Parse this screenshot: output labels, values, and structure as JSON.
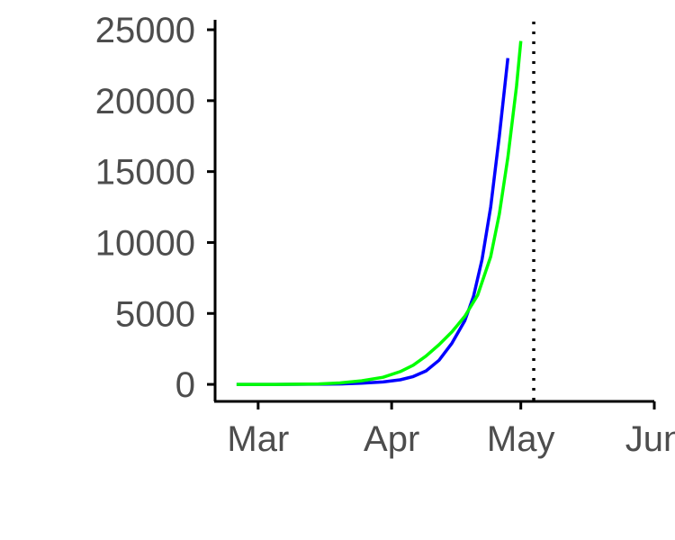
{
  "chart_data": {
    "type": "line",
    "title": "",
    "xlabel": "",
    "ylabel": "",
    "x_axis": {
      "type": "date",
      "range": [
        "2020-02-20",
        "2020-06-01"
      ],
      "ticks": [
        {
          "date": "2020-03-01",
          "label": "Mar"
        },
        {
          "date": "2020-04-01",
          "label": "Apr"
        },
        {
          "date": "2020-05-01",
          "label": "May"
        },
        {
          "date": "2020-06-01",
          "label": "Jun"
        }
      ]
    },
    "y_axis": {
      "range": [
        -1200,
        25700
      ],
      "ticks": [
        0,
        5000,
        10000,
        15000,
        20000,
        25000
      ]
    },
    "grid": false,
    "legend": "none",
    "reference_lines": [
      {
        "orientation": "vertical",
        "date": "2020-05-04",
        "style": "dotted",
        "color": "#000000"
      }
    ],
    "series": [
      {
        "color": "#0000ff",
        "points": [
          [
            "2020-02-25",
            0
          ],
          [
            "2020-03-05",
            0
          ],
          [
            "2020-03-15",
            10
          ],
          [
            "2020-03-20",
            30
          ],
          [
            "2020-03-25",
            80
          ],
          [
            "2020-03-30",
            170
          ],
          [
            "2020-04-03",
            320
          ],
          [
            "2020-04-06",
            550
          ],
          [
            "2020-04-09",
            950
          ],
          [
            "2020-04-12",
            1700
          ],
          [
            "2020-04-15",
            2900
          ],
          [
            "2020-04-18",
            4500
          ],
          [
            "2020-04-20",
            6200
          ],
          [
            "2020-04-22",
            8800
          ],
          [
            "2020-04-24",
            12500
          ],
          [
            "2020-04-26",
            17500
          ],
          [
            "2020-04-28",
            23000
          ]
        ]
      },
      {
        "color": "#00ff00",
        "points": [
          [
            "2020-02-25",
            0
          ],
          [
            "2020-03-05",
            0
          ],
          [
            "2020-03-15",
            30
          ],
          [
            "2020-03-20",
            100
          ],
          [
            "2020-03-25",
            250
          ],
          [
            "2020-03-30",
            500
          ],
          [
            "2020-04-03",
            900
          ],
          [
            "2020-04-06",
            1350
          ],
          [
            "2020-04-09",
            2000
          ],
          [
            "2020-04-12",
            2800
          ],
          [
            "2020-04-15",
            3700
          ],
          [
            "2020-04-18",
            4800
          ],
          [
            "2020-04-21",
            6300
          ],
          [
            "2020-04-24",
            9000
          ],
          [
            "2020-04-26",
            12000
          ],
          [
            "2020-04-28",
            16000
          ],
          [
            "2020-04-30",
            21000
          ],
          [
            "2020-05-01",
            24200
          ]
        ]
      }
    ]
  }
}
